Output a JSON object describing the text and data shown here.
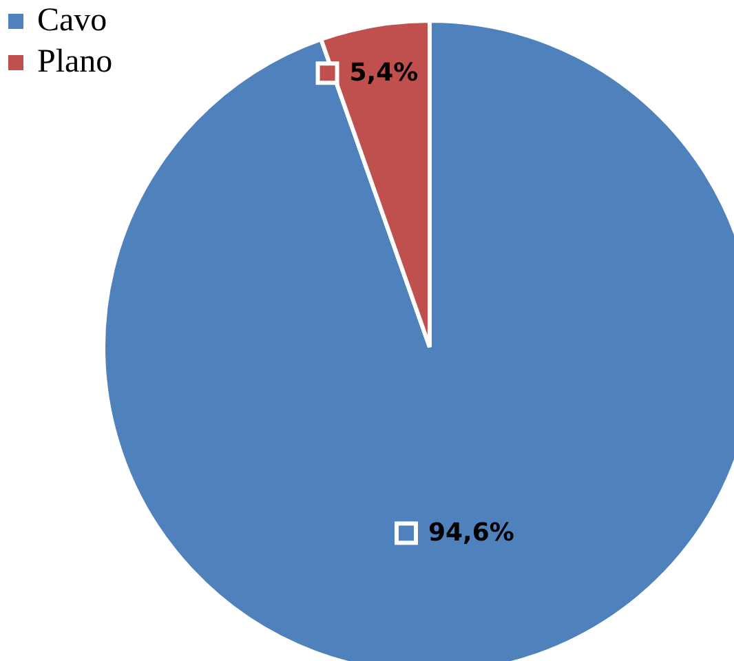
{
  "chart_data": {
    "type": "pie",
    "categories": [
      "Cavo",
      "Plano"
    ],
    "values": [
      94.6,
      5.4
    ],
    "colors": [
      "#4f81bd",
      "#c0504d"
    ],
    "value_labels": [
      "94,6%",
      "5,4%"
    ],
    "legend": "top left"
  }
}
